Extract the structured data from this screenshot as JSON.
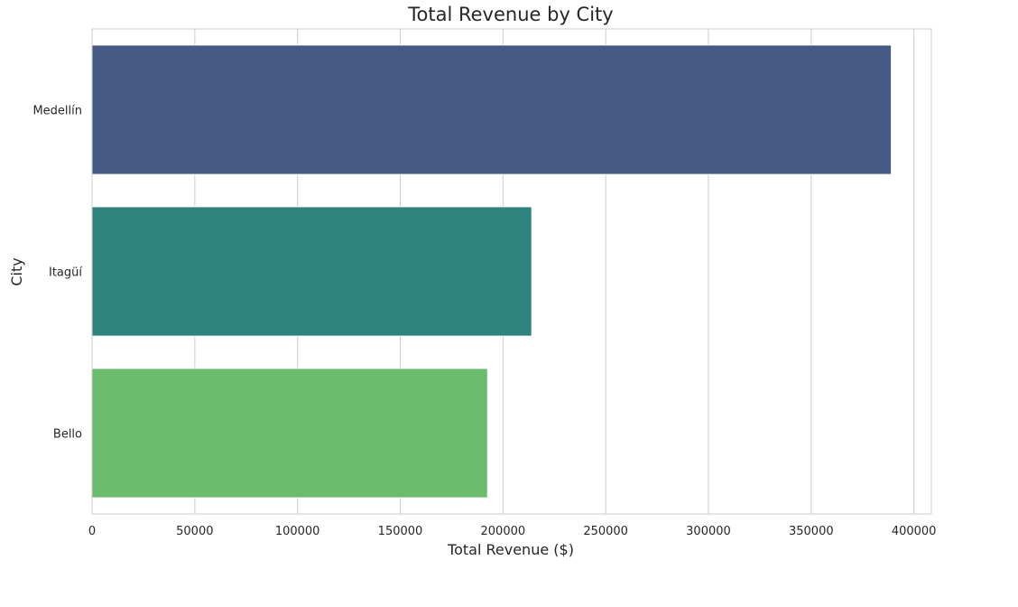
{
  "chart_data": {
    "type": "bar",
    "orientation": "horizontal",
    "title": "Total Revenue by City",
    "xlabel": "Total Revenue ($)",
    "ylabel": "City",
    "categories": [
      "Medellín",
      "Itagüí",
      "Bello"
    ],
    "values": [
      389000,
      214000,
      192500
    ],
    "colors": [
      "#475a85",
      "#2e837e",
      "#6bbc6d"
    ],
    "xlim": [
      0,
      408500
    ],
    "xticks": [
      0,
      50000,
      100000,
      150000,
      200000,
      250000,
      300000,
      350000,
      400000
    ],
    "xtick_labels": [
      "0",
      "50000",
      "100000",
      "150000",
      "200000",
      "250000",
      "300000",
      "350000",
      "400000"
    ],
    "grid": true
  }
}
